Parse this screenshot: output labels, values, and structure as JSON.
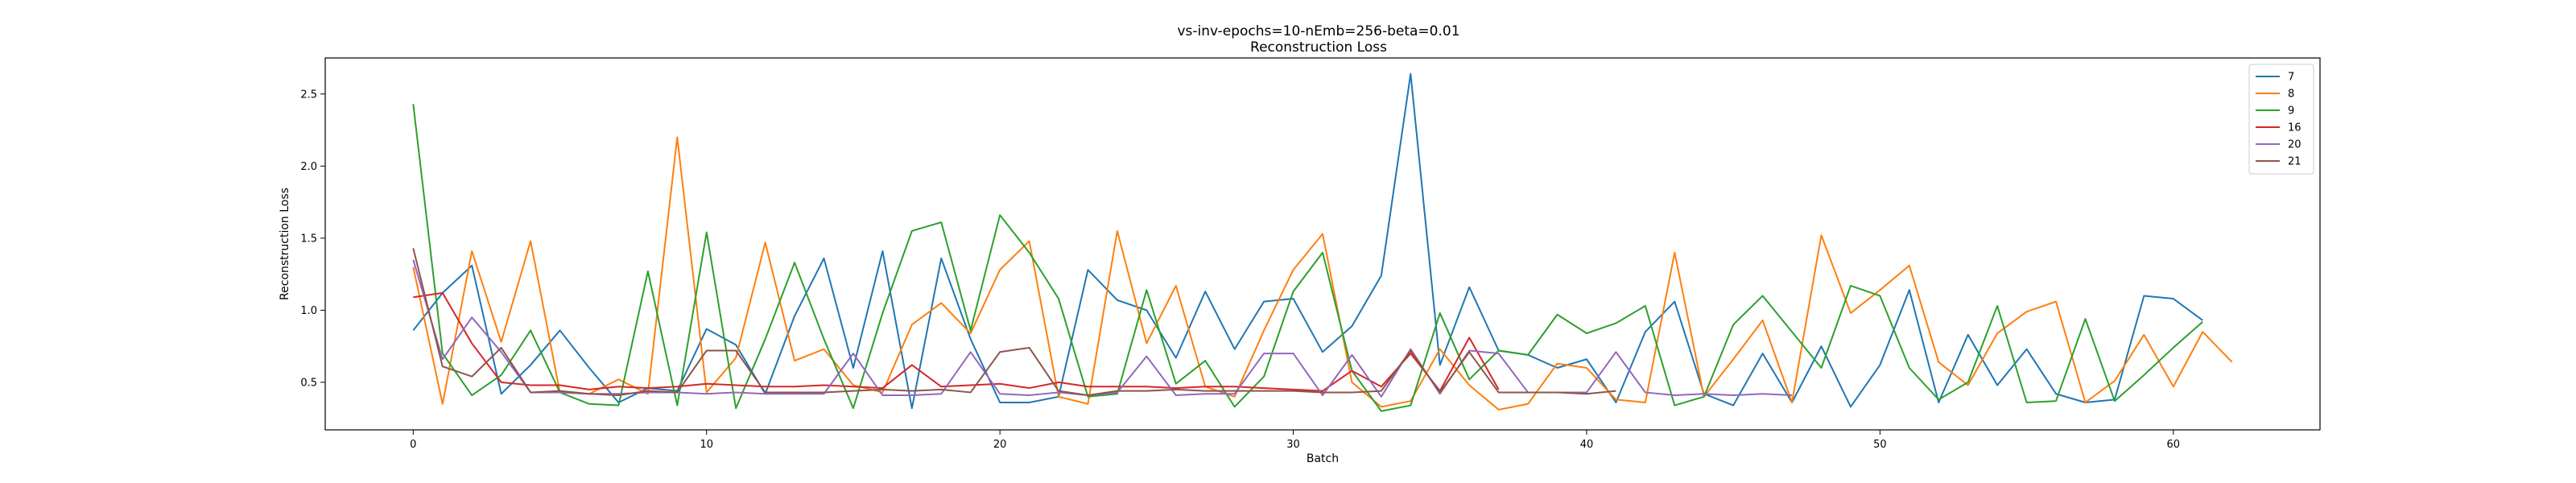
{
  "chart_data": {
    "type": "line",
    "title": "vs-inv-epochs=10-nEmb=256-beta=0.01",
    "subtitle": "Reconstruction Loss",
    "xlabel": "Batch",
    "ylabel": "Reconstruction Loss",
    "xlim": [
      -3,
      65
    ],
    "ylim": [
      0.17,
      2.75
    ],
    "xticks": [
      0,
      10,
      20,
      30,
      40,
      50,
      60
    ],
    "yticks": [
      0.5,
      1.0,
      1.5,
      2.0,
      2.5
    ],
    "ytick_labels": [
      "0.5",
      "1.0",
      "1.5",
      "2.0",
      "2.5"
    ],
    "grid": false,
    "legend_position": "top-right",
    "series": [
      {
        "name": "7",
        "color": "#1f77b4",
        "values": [
          0.86,
          1.12,
          1.31,
          0.42,
          0.62,
          0.86,
          0.6,
          0.36,
          0.46,
          0.44,
          0.87,
          0.76,
          0.42,
          0.96,
          1.36,
          0.6,
          1.41,
          0.32,
          1.36,
          0.8,
          0.36,
          0.36,
          0.4,
          1.28,
          1.07,
          1.0,
          0.67,
          1.13,
          0.73,
          1.06,
          1.08,
          0.71,
          0.89,
          1.24,
          2.64,
          0.62,
          1.16,
          0.72,
          0.69,
          0.6,
          0.66,
          0.36,
          0.85,
          1.06,
          0.42,
          0.34,
          0.7,
          0.36,
          0.75,
          0.33,
          0.62,
          1.14,
          0.36,
          0.83,
          0.48,
          0.73,
          0.42,
          0.36,
          0.38,
          1.1,
          1.08,
          0.93
        ]
      },
      {
        "name": "8",
        "color": "#ff7f0e",
        "values": [
          1.3,
          0.35,
          1.41,
          0.78,
          1.48,
          0.43,
          0.42,
          0.52,
          0.42,
          2.2,
          0.43,
          0.67,
          1.47,
          0.65,
          0.73,
          0.48,
          0.43,
          0.9,
          1.05,
          0.84,
          1.28,
          1.48,
          0.4,
          0.35,
          1.55,
          0.77,
          1.17,
          0.47,
          0.4,
          0.86,
          1.28,
          1.53,
          0.5,
          0.33,
          0.37,
          0.73,
          0.48,
          0.31,
          0.35,
          0.63,
          0.6,
          0.38,
          0.36,
          1.4,
          0.4,
          0.66,
          0.93,
          0.36,
          1.52,
          0.98,
          1.14,
          1.31,
          0.64,
          0.48,
          0.84,
          0.99,
          1.06,
          0.36,
          0.51,
          0.83,
          0.47,
          0.85,
          0.64
        ]
      },
      {
        "name": "9",
        "color": "#2ca02c",
        "values": [
          2.43,
          0.7,
          0.41,
          0.55,
          0.86,
          0.43,
          0.35,
          0.34,
          1.27,
          0.34,
          1.54,
          0.32,
          0.8,
          1.33,
          0.8,
          0.32,
          0.98,
          1.55,
          1.61,
          0.86,
          1.66,
          1.4,
          1.08,
          0.4,
          0.42,
          1.14,
          0.49,
          0.65,
          0.33,
          0.54,
          1.13,
          1.4,
          0.58,
          0.3,
          0.34,
          0.98,
          0.52,
          0.72,
          0.69,
          0.97,
          0.84,
          0.91,
          1.03,
          0.34,
          0.4,
          0.9,
          1.1,
          0.85,
          0.6,
          1.17,
          1.1,
          0.6,
          0.38,
          0.5,
          1.03,
          0.36,
          0.37,
          0.94,
          0.37,
          0.55,
          0.74,
          0.92
        ]
      },
      {
        "name": "16",
        "color": "#d62728",
        "values": [
          1.09,
          1.12,
          0.77,
          0.5,
          0.48,
          0.48,
          0.45,
          0.47,
          0.46,
          0.47,
          0.49,
          0.48,
          0.47,
          0.47,
          0.48,
          0.47,
          0.46,
          0.62,
          0.47,
          0.48,
          0.49,
          0.46,
          0.5,
          0.47,
          0.47,
          0.47,
          0.46,
          0.47,
          0.47,
          0.46,
          0.45,
          0.44,
          0.58,
          0.47,
          0.7,
          0.44,
          0.81,
          0.45
        ]
      },
      {
        "name": "20",
        "color": "#9467bd",
        "values": [
          1.35,
          0.66,
          0.95,
          0.71,
          0.43,
          0.43,
          0.42,
          0.42,
          0.43,
          0.43,
          0.42,
          0.43,
          0.42,
          0.42,
          0.42,
          0.7,
          0.41,
          0.41,
          0.42,
          0.71,
          0.42,
          0.41,
          0.43,
          0.41,
          0.43,
          0.68,
          0.41,
          0.42,
          0.42,
          0.7,
          0.7,
          0.41,
          0.69,
          0.4,
          0.73,
          0.42,
          0.72,
          0.7,
          0.43,
          0.43,
          0.43,
          0.71,
          0.43,
          0.41,
          0.42,
          0.41,
          0.42,
          0.41
        ]
      },
      {
        "name": "21",
        "color": "#8c564b",
        "values": [
          1.43,
          0.61,
          0.54,
          0.74,
          0.43,
          0.44,
          0.42,
          0.41,
          0.44,
          0.43,
          0.72,
          0.72,
          0.43,
          0.43,
          0.43,
          0.44,
          0.45,
          0.44,
          0.45,
          0.43,
          0.71,
          0.74,
          0.44,
          0.41,
          0.44,
          0.44,
          0.45,
          0.44,
          0.44,
          0.44,
          0.44,
          0.43,
          0.43,
          0.44,
          0.72,
          0.43,
          0.71,
          0.43,
          0.43,
          0.43,
          0.42,
          0.44
        ]
      }
    ]
  }
}
